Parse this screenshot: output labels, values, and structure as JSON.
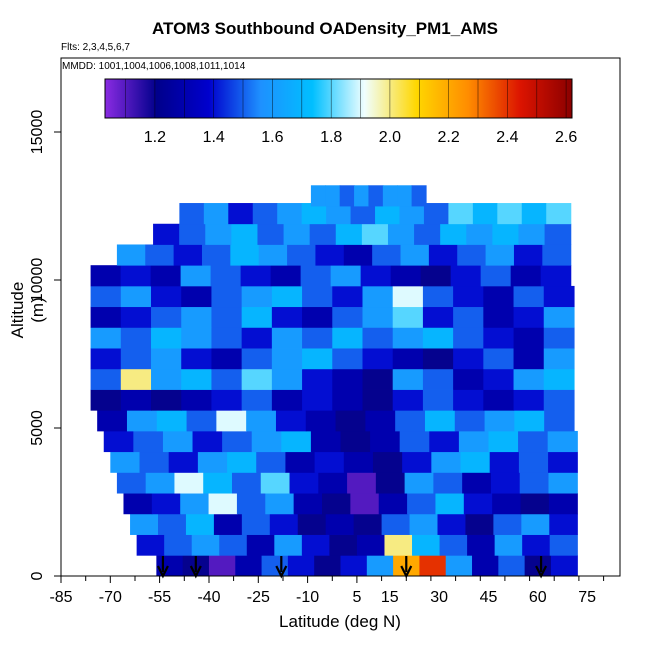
{
  "chart_data": {
    "type": "heatmap",
    "title": "ATOM3 Southbound OADensity_PM1_AMS",
    "flights_note": "Flts: 2,3,4,5,6,7",
    "dates_note": "MMDD: 1001,1004,1006,1008,1011,1014",
    "xlabel": "Latitude (deg N)",
    "ylabel": "Altitude (m)",
    "xlim": [
      -85,
      85
    ],
    "ylim": [
      0,
      17500
    ],
    "x_ticks": [
      -85,
      -70,
      -55,
      -40,
      -25,
      -10,
      5,
      15,
      30,
      45,
      60,
      75
    ],
    "y_ticks": [
      0,
      5000,
      10000,
      15000
    ],
    "colorbar": {
      "range": [
        1.03,
        2.62
      ],
      "ticks": [
        "1.2",
        "1.4",
        "1.6",
        "1.8",
        "2.0",
        "2.2",
        "2.4",
        "2.6"
      ],
      "tick_values": [
        1.2,
        1.4,
        1.6,
        1.8,
        2.0,
        2.2,
        2.4,
        2.6
      ],
      "colors": [
        "#8a2be2",
        "#00008b",
        "#0000cd",
        "#1e90ff",
        "#00bfff",
        "#f0ffff",
        "#ffd700",
        "#ff8c00",
        "#dc1400",
        "#8b0000"
      ],
      "placement": "top-inside"
    },
    "profile_markers_lat": [
      -54,
      -44,
      -18,
      20,
      61
    ],
    "rows": [
      {
        "alt": 350,
        "lat": [
          -56,
          72
        ],
        "values": [
          1.3,
          1.2,
          1.1,
          1.3,
          1.5,
          1.4,
          1.2,
          1.4,
          1.6,
          2.2,
          2.4,
          1.6,
          1.3,
          1.5,
          1.2,
          1.4
        ]
      },
      {
        "alt": 1050,
        "lat": [
          -62,
          72
        ],
        "values": [
          1.4,
          1.5,
          1.6,
          1.5,
          1.3,
          1.6,
          1.4,
          1.2,
          1.3,
          2.0,
          1.7,
          1.5,
          1.3,
          1.6,
          1.4,
          1.5
        ]
      },
      {
        "alt": 1750,
        "lat": [
          -64,
          72
        ],
        "values": [
          1.6,
          1.5,
          1.7,
          1.3,
          1.5,
          1.4,
          1.2,
          1.3,
          1.2,
          1.5,
          1.6,
          1.4,
          1.2,
          1.5,
          1.6,
          1.4
        ]
      },
      {
        "alt": 2450,
        "lat": [
          -66,
          72
        ],
        "values": [
          1.3,
          1.4,
          1.6,
          1.9,
          1.5,
          1.6,
          1.3,
          1.2,
          1.1,
          1.3,
          1.5,
          1.7,
          1.4,
          1.3,
          1.2,
          1.3
        ]
      },
      {
        "alt": 3150,
        "lat": [
          -68,
          72
        ],
        "values": [
          1.5,
          1.6,
          1.9,
          1.7,
          1.5,
          1.8,
          1.4,
          1.3,
          1.1,
          1.2,
          1.6,
          1.5,
          1.3,
          1.4,
          1.5,
          1.6
        ]
      },
      {
        "alt": 3850,
        "lat": [
          -70,
          72
        ],
        "values": [
          1.6,
          1.5,
          1.4,
          1.6,
          1.7,
          1.5,
          1.3,
          1.4,
          1.3,
          1.2,
          1.4,
          1.6,
          1.7,
          1.4,
          1.5,
          1.4
        ]
      },
      {
        "alt": 4550,
        "lat": [
          -72,
          72
        ],
        "values": [
          1.4,
          1.5,
          1.6,
          1.4,
          1.5,
          1.6,
          1.7,
          1.3,
          1.2,
          1.3,
          1.5,
          1.4,
          1.6,
          1.7,
          1.5,
          1.6
        ]
      },
      {
        "alt": 5250,
        "lat": [
          -74,
          71
        ],
        "values": [
          1.3,
          1.6,
          1.7,
          1.5,
          1.9,
          1.6,
          1.4,
          1.3,
          1.2,
          1.3,
          1.5,
          1.7,
          1.5,
          1.6,
          1.7,
          1.5
        ]
      },
      {
        "alt": 5950,
        "lat": [
          -76,
          71
        ],
        "values": [
          1.2,
          1.3,
          1.2,
          1.3,
          1.4,
          1.5,
          1.3,
          1.4,
          1.3,
          1.2,
          1.4,
          1.5,
          1.4,
          1.3,
          1.4,
          1.5
        ]
      },
      {
        "alt": 6650,
        "lat": [
          -76,
          71
        ],
        "values": [
          1.5,
          2.0,
          1.6,
          1.7,
          1.5,
          1.8,
          1.6,
          1.4,
          1.3,
          1.2,
          1.6,
          1.5,
          1.3,
          1.4,
          1.6,
          1.7
        ]
      },
      {
        "alt": 7350,
        "lat": [
          -76,
          71
        ],
        "values": [
          1.4,
          1.5,
          1.6,
          1.4,
          1.3,
          1.5,
          1.6,
          1.7,
          1.5,
          1.4,
          1.3,
          1.2,
          1.4,
          1.5,
          1.3,
          1.6
        ]
      },
      {
        "alt": 8050,
        "lat": [
          -76,
          71
        ],
        "values": [
          1.6,
          1.5,
          1.7,
          1.6,
          1.5,
          1.4,
          1.6,
          1.5,
          1.7,
          1.5,
          1.6,
          1.7,
          1.5,
          1.4,
          1.3,
          1.5
        ]
      },
      {
        "alt": 8750,
        "lat": [
          -76,
          71
        ],
        "values": [
          1.3,
          1.4,
          1.5,
          1.6,
          1.5,
          1.7,
          1.4,
          1.3,
          1.5,
          1.6,
          1.8,
          1.4,
          1.5,
          1.3,
          1.4,
          1.6
        ]
      },
      {
        "alt": 9450,
        "lat": [
          -76,
          71
        ],
        "values": [
          1.5,
          1.6,
          1.4,
          1.3,
          1.5,
          1.6,
          1.7,
          1.5,
          1.4,
          1.6,
          1.9,
          1.5,
          1.4,
          1.3,
          1.5,
          1.4
        ]
      },
      {
        "alt": 10150,
        "lat": [
          -76,
          70
        ],
        "values": [
          1.3,
          1.4,
          1.3,
          1.6,
          1.5,
          1.4,
          1.3,
          1.5,
          1.6,
          1.4,
          1.3,
          1.2,
          1.4,
          1.5,
          1.3,
          1.4
        ]
      },
      {
        "alt": 10850,
        "lat": [
          -68,
          70
        ],
        "values": [
          1.6,
          1.5,
          1.4,
          1.5,
          1.7,
          1.6,
          1.5,
          1.4,
          1.3,
          1.5,
          1.6,
          1.4,
          1.5,
          1.6,
          1.4,
          1.5
        ]
      },
      {
        "alt": 11550,
        "lat": [
          -57,
          70
        ],
        "values": [
          1.4,
          1.5,
          1.6,
          1.7,
          1.5,
          1.6,
          1.5,
          1.7,
          1.8,
          1.6,
          1.5,
          1.7,
          1.6,
          1.7,
          1.6,
          1.5
        ]
      },
      {
        "alt": 12250,
        "lat": [
          -49,
          70
        ],
        "values": [
          1.5,
          1.6,
          1.4,
          1.5,
          1.6,
          1.7,
          1.6,
          1.5,
          1.7,
          1.6,
          1.5,
          1.8,
          1.7,
          1.8,
          1.7,
          1.8
        ]
      },
      {
        "alt": 12850,
        "lat": [
          -9,
          26
        ],
        "values": [
          1.6,
          1.6,
          1.5,
          1.6,
          1.5,
          1.6,
          1.6,
          1.5
        ]
      }
    ]
  }
}
